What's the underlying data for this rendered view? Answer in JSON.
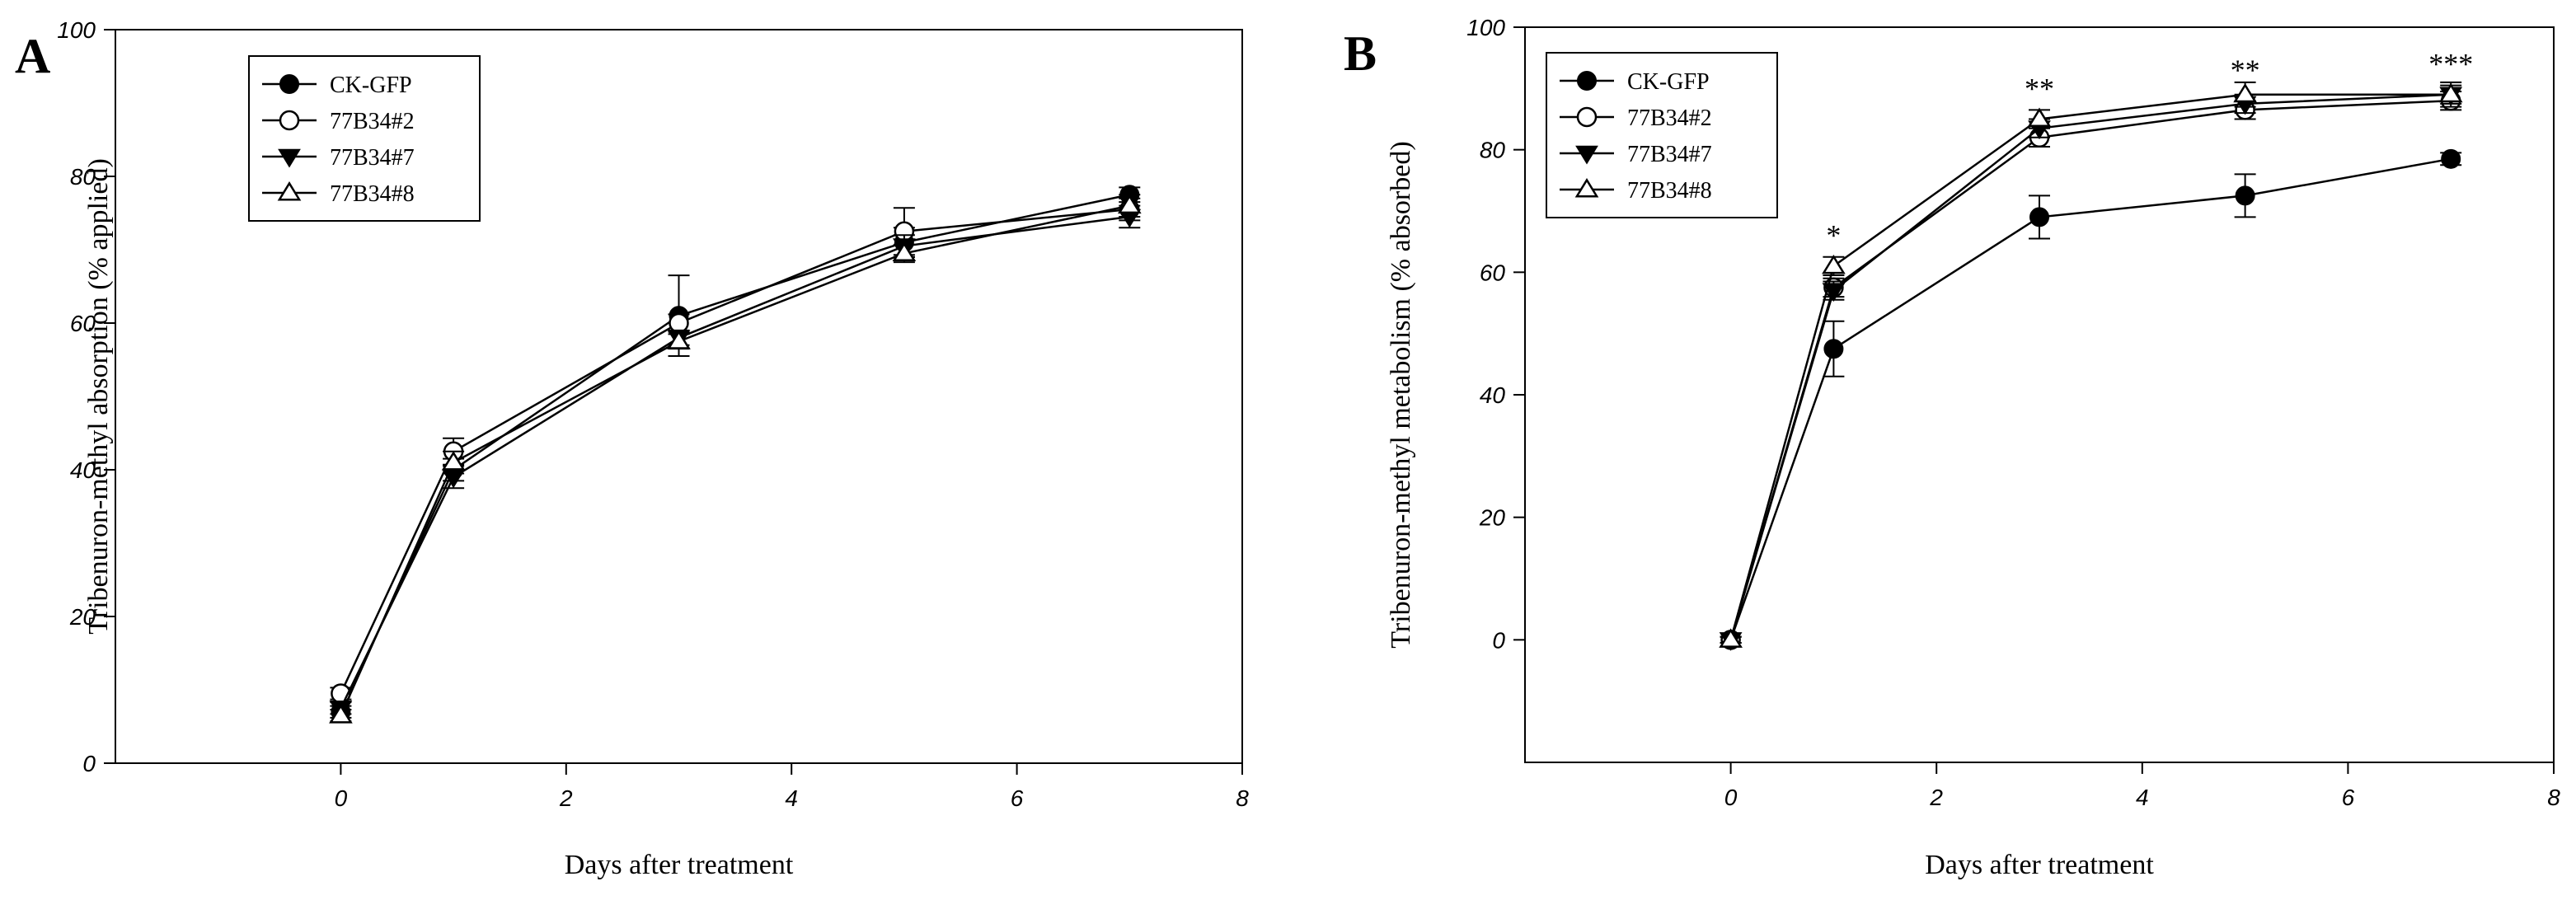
{
  "chart_data": [
    {
      "type": "line",
      "panel": "A",
      "xlabel": "Days after treatment",
      "ylabel": "Tribenuron-methyl absorption (% applied)",
      "xlim": [
        -2,
        8
      ],
      "ylim": [
        0,
        100
      ],
      "xticks": [
        0,
        2,
        4,
        6,
        8
      ],
      "yticks": [
        0,
        20,
        40,
        60,
        80,
        100
      ],
      "legend_position": "top-left",
      "x": [
        0,
        1,
        3,
        5,
        7
      ],
      "series": [
        {
          "name": "CK-GFP",
          "marker": "filled-circle",
          "values": [
            7,
            40,
            61,
            71,
            77.5
          ],
          "errors": [
            0.8,
            1.5,
            5.5,
            2.0,
            1.0
          ]
        },
        {
          "name": "77B34#2",
          "marker": "open-circle",
          "values": [
            9.5,
            42.5,
            60,
            72.5,
            75.5
          ],
          "errors": [
            0.8,
            1.8,
            1.2,
            3.2,
            1.5
          ]
        },
        {
          "name": "77B34#7",
          "marker": "filled-triangle-down",
          "values": [
            7.5,
            39,
            58,
            70.5,
            74.5
          ],
          "errors": [
            0.8,
            1.5,
            1.0,
            1.5,
            1.5
          ]
        },
        {
          "name": "77B34#8",
          "marker": "open-triangle-up",
          "values": [
            6.5,
            41,
            57.5,
            69.5,
            76
          ],
          "errors": [
            0.8,
            1.5,
            1.0,
            1.2,
            1.5
          ]
        }
      ],
      "annotations": []
    },
    {
      "type": "line",
      "panel": "B",
      "xlabel": "Days after treatment",
      "ylabel": "Tribenuron-methyl metabolism (% absorbed)",
      "xlim": [
        -2,
        8
      ],
      "ylim": [
        -20,
        100
      ],
      "xticks": [
        0,
        2,
        4,
        6,
        8
      ],
      "yticks": [
        0,
        20,
        40,
        60,
        80,
        100
      ],
      "legend_position": "top-left",
      "x": [
        0,
        1,
        3,
        5,
        7
      ],
      "series": [
        {
          "name": "CK-GFP",
          "marker": "filled-circle",
          "values": [
            0,
            47.5,
            69,
            72.5,
            78.5
          ],
          "errors": [
            0.5,
            4.5,
            3.5,
            3.5,
            1.0
          ]
        },
        {
          "name": "77B34#2",
          "marker": "open-circle",
          "values": [
            0,
            57.5,
            82,
            86.5,
            88
          ],
          "errors": [
            0.5,
            1.5,
            1.5,
            1.5,
            1.5
          ]
        },
        {
          "name": "77B34#7",
          "marker": "filled-triangle-down",
          "values": [
            0,
            57,
            83.5,
            87.5,
            89
          ],
          "errors": [
            0.5,
            1.5,
            1.5,
            1.5,
            1.5
          ]
        },
        {
          "name": "77B34#8",
          "marker": "open-triangle-up",
          "values": [
            0,
            61,
            85,
            89,
            89
          ],
          "errors": [
            0.5,
            1.5,
            1.5,
            2.0,
            2.0
          ]
        }
      ],
      "annotations": [
        {
          "text": "*",
          "x": 1,
          "y": 66
        },
        {
          "text": "**",
          "x": 3,
          "y": 90
        },
        {
          "text": "**",
          "x": 5,
          "y": 93
        },
        {
          "text": "***",
          "x": 7,
          "y": 94
        }
      ]
    }
  ]
}
